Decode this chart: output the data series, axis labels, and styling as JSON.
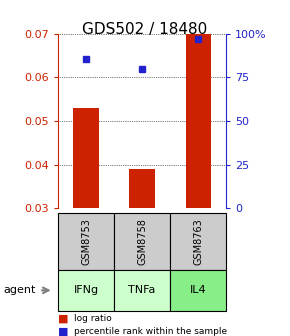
{
  "title": "GDS502 / 18480",
  "samples": [
    "GSM8753",
    "GSM8758",
    "GSM8763"
  ],
  "agents": [
    "IFNg",
    "TNFa",
    "IL4"
  ],
  "log_ratio": [
    0.053,
    0.039,
    0.07
  ],
  "percentile_rank": [
    85.6,
    80.0,
    96.8
  ],
  "ylim_left": [
    0.03,
    0.07
  ],
  "ylim_right": [
    0,
    100
  ],
  "yticks_left": [
    0.03,
    0.04,
    0.05,
    0.06,
    0.07
  ],
  "yticks_right": [
    0,
    25,
    50,
    75,
    100
  ],
  "ytick_labels_left": [
    "0.03",
    "0.04",
    "0.05",
    "0.06",
    "0.07"
  ],
  "ytick_labels_right": [
    "0",
    "25",
    "50",
    "75",
    "100%"
  ],
  "bar_color": "#cc2200",
  "dot_color": "#2222cc",
  "agent_colors": [
    "#ccffcc",
    "#ccffcc",
    "#88ee88"
  ],
  "sample_bg_color": "#cccccc",
  "title_fontsize": 11,
  "bar_width": 0.45,
  "legend_bar_label": "log ratio",
  "legend_dot_label": "percentile rank within the sample"
}
